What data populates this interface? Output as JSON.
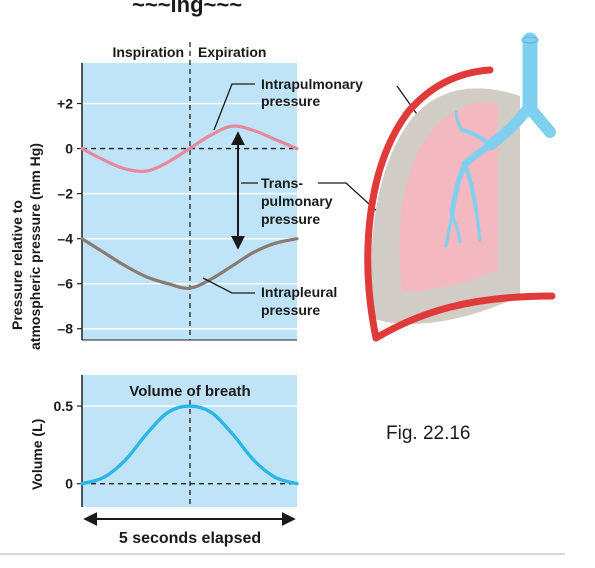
{
  "header_fragment": "~~~ing~~~",
  "pressure_panel": {
    "phase_left": "Inspiration",
    "phase_right": "Expiration",
    "y_axis_label_line1": "Pressure relative to",
    "y_axis_label_line2": "atmospheric pressure (mm Hg)",
    "y_ticks": [
      "+2",
      "0",
      "–2",
      "–4",
      "–6",
      "–8"
    ],
    "labels": {
      "intrapulmonary_1": "Intrapulmonary",
      "intrapulmonary_2": "pressure",
      "transpulmonary_1": "Trans-",
      "transpulmonary_2": "pulmonary",
      "transpulmonary_3": "pressure",
      "intrapleural_1": "Intrapleural",
      "intrapleural_2": "pressure"
    }
  },
  "volume_panel": {
    "title": "Volume of breath",
    "y_axis_label": "Volume (L)",
    "y_ticks": [
      "0.5",
      "0"
    ]
  },
  "time_label": "5 seconds elapsed",
  "figure_caption": "Fig. 22.16",
  "colors": {
    "panel_fill": "#bfe4f7",
    "intrapulmonary_curve": "#e7899a",
    "intrapleural_curve": "#8a7a72",
    "volume_curve": "#2bb6e6",
    "lung_wall": "#e03a3a",
    "pleural_space": "#d2ccc6",
    "lung_tissue": "#f4b8c0",
    "airway": "#7fd0ef"
  },
  "chart_data": [
    {
      "type": "line",
      "x": [
        0,
        0.5,
        1,
        1.5,
        2,
        2.5,
        3,
        3.5,
        4,
        4.5,
        5
      ],
      "series": [
        {
          "values": [
            0,
            -0.5,
            -0.9,
            -1,
            -0.6,
            0,
            0.6,
            1,
            0.8,
            0.4,
            0
          ]
        },
        {
          "values": [
            -4,
            -4.6,
            -5.2,
            -5.7,
            -6,
            -6.2,
            -5.8,
            -5.2,
            -4.6,
            -4.2,
            -4
          ]
        }
      ],
      "yticks": [
        "+2",
        "0",
        "–2",
        "–4",
        "–6",
        "–8"
      ],
      "ylim": [
        -8.5,
        3.8
      ],
      "xlim": [
        0,
        5
      ]
    },
    {
      "type": "line",
      "title": "Volume of breath",
      "x": [
        0,
        0.5,
        1,
        1.5,
        2,
        2.5,
        3,
        3.5,
        4,
        4.5,
        5
      ],
      "series": [
        {
          "values": [
            0,
            0.04,
            0.15,
            0.32,
            0.46,
            0.5,
            0.46,
            0.32,
            0.15,
            0.04,
            0
          ]
        }
      ],
      "ylabel": "Volume (L)",
      "yticks": [
        "0.5",
        "0"
      ],
      "ylim": [
        -0.15,
        0.7
      ],
      "xlim": [
        0,
        5
      ]
    }
  ]
}
